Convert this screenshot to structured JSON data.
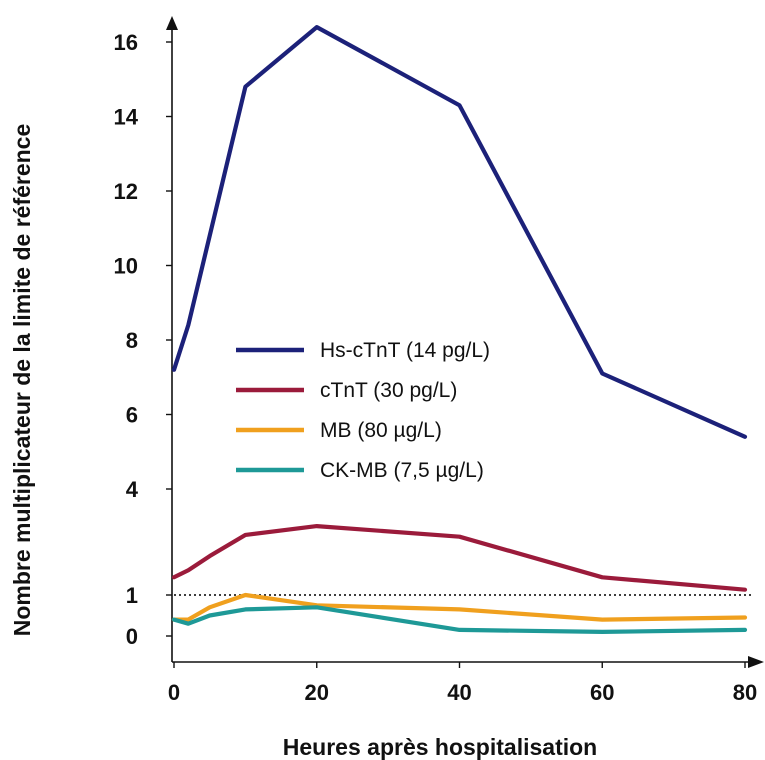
{
  "chart_data": {
    "type": "line",
    "xlabel": "Heures après hospitalisation",
    "ylabel": "Nombre multiplicateur de la limite de référence",
    "x_ticks": [
      "0",
      "20",
      "40",
      "60",
      "80"
    ],
    "x_tick_values": [
      0,
      20,
      40,
      60,
      80
    ],
    "y_ticks": [
      "0",
      "1",
      "4",
      "6",
      "8",
      "10",
      "12",
      "14",
      "16"
    ],
    "y_tick_values": [
      0,
      1,
      4,
      6,
      8,
      10,
      12,
      14,
      16
    ],
    "xlim": [
      0,
      80
    ],
    "ylim": [
      0,
      16.5
    ],
    "grid": false,
    "legend_position": "center-left",
    "reference_line": {
      "y": 1,
      "style": "dotted"
    },
    "series": [
      {
        "name": "Hs-cTnT (14 pg/L)",
        "color": "#1c2179",
        "points": [
          [
            0,
            7.2
          ],
          [
            2,
            8.4
          ],
          [
            5,
            10.8
          ],
          [
            10,
            14.8
          ],
          [
            20,
            16.4
          ],
          [
            40,
            14.3
          ],
          [
            60,
            7.1
          ],
          [
            80,
            5.4
          ]
        ]
      },
      {
        "name": "cTnT (30 pg/L)",
        "color": "#9b1b3b",
        "points": [
          [
            0,
            1.5
          ],
          [
            2,
            1.7
          ],
          [
            5,
            2.1
          ],
          [
            10,
            2.7
          ],
          [
            20,
            2.95
          ],
          [
            40,
            2.65
          ],
          [
            60,
            1.5
          ],
          [
            80,
            1.15
          ]
        ]
      },
      {
        "name": "MB (80 µg/L)",
        "color": "#f0a01e",
        "points": [
          [
            0,
            0.4
          ],
          [
            2,
            0.4
          ],
          [
            5,
            0.7
          ],
          [
            10,
            1.0
          ],
          [
            20,
            0.75
          ],
          [
            40,
            0.65
          ],
          [
            60,
            0.4
          ],
          [
            80,
            0.45
          ]
        ]
      },
      {
        "name": "CK-MB (7,5 µg/L)",
        "color": "#1e9997",
        "points": [
          [
            0,
            0.4
          ],
          [
            2,
            0.3
          ],
          [
            5,
            0.5
          ],
          [
            10,
            0.65
          ],
          [
            20,
            0.7
          ],
          [
            40,
            0.15
          ],
          [
            60,
            0.1
          ],
          [
            80,
            0.15
          ]
        ]
      }
    ]
  }
}
